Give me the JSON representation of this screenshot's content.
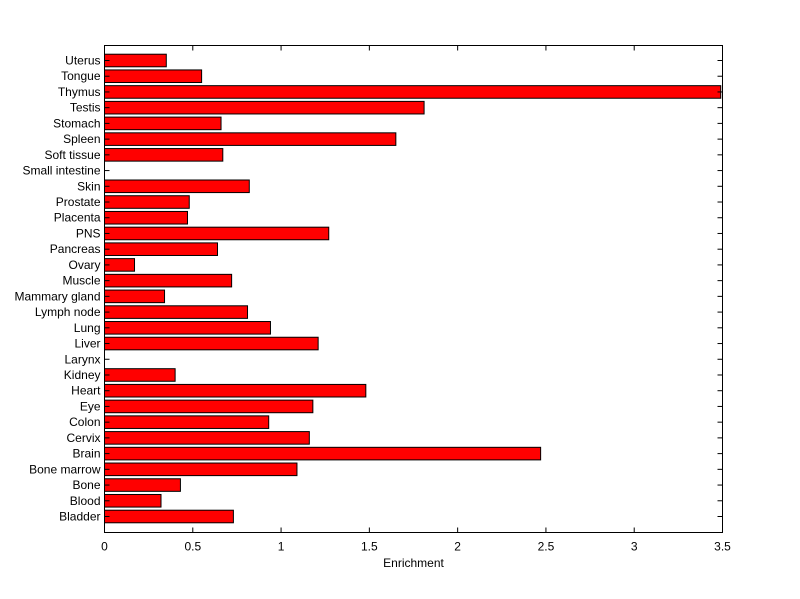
{
  "chart_data": {
    "type": "bar",
    "orientation": "horizontal",
    "title": "",
    "xlabel": "Enrichment",
    "ylabel": "",
    "xlim": [
      0,
      3.5
    ],
    "xticks": [
      0,
      0.5,
      1,
      1.5,
      2,
      2.5,
      3,
      3.5
    ],
    "xtick_labels": [
      "0",
      "0.5",
      "1",
      "1.5",
      "2",
      "2.5",
      "3",
      "3.5"
    ],
    "grid": false,
    "legend": "none",
    "bar_color": "#ff0000",
    "categories": [
      "Uterus",
      "Tongue",
      "Thymus",
      "Testis",
      "Stomach",
      "Spleen",
      "Soft tissue",
      "Small intestine",
      "Skin",
      "Prostate",
      "Placenta",
      "PNS",
      "Pancreas",
      "Ovary",
      "Muscle",
      "Mammary gland",
      "Lymph node",
      "Lung",
      "Liver",
      "Larynx",
      "Kidney",
      "Heart",
      "Eye",
      "Colon",
      "Cervix",
      "Brain",
      "Bone marrow",
      "Bone",
      "Blood",
      "Bladder"
    ],
    "values": [
      0.35,
      0.55,
      3.49,
      1.81,
      0.66,
      1.65,
      0.67,
      0,
      0.82,
      0.48,
      0.47,
      1.27,
      0.64,
      0.17,
      0.72,
      0.34,
      0.81,
      0.94,
      1.21,
      0,
      0.4,
      1.48,
      1.18,
      0.93,
      1.16,
      2.47,
      1.09,
      0.43,
      0.32,
      0.73
    ]
  }
}
